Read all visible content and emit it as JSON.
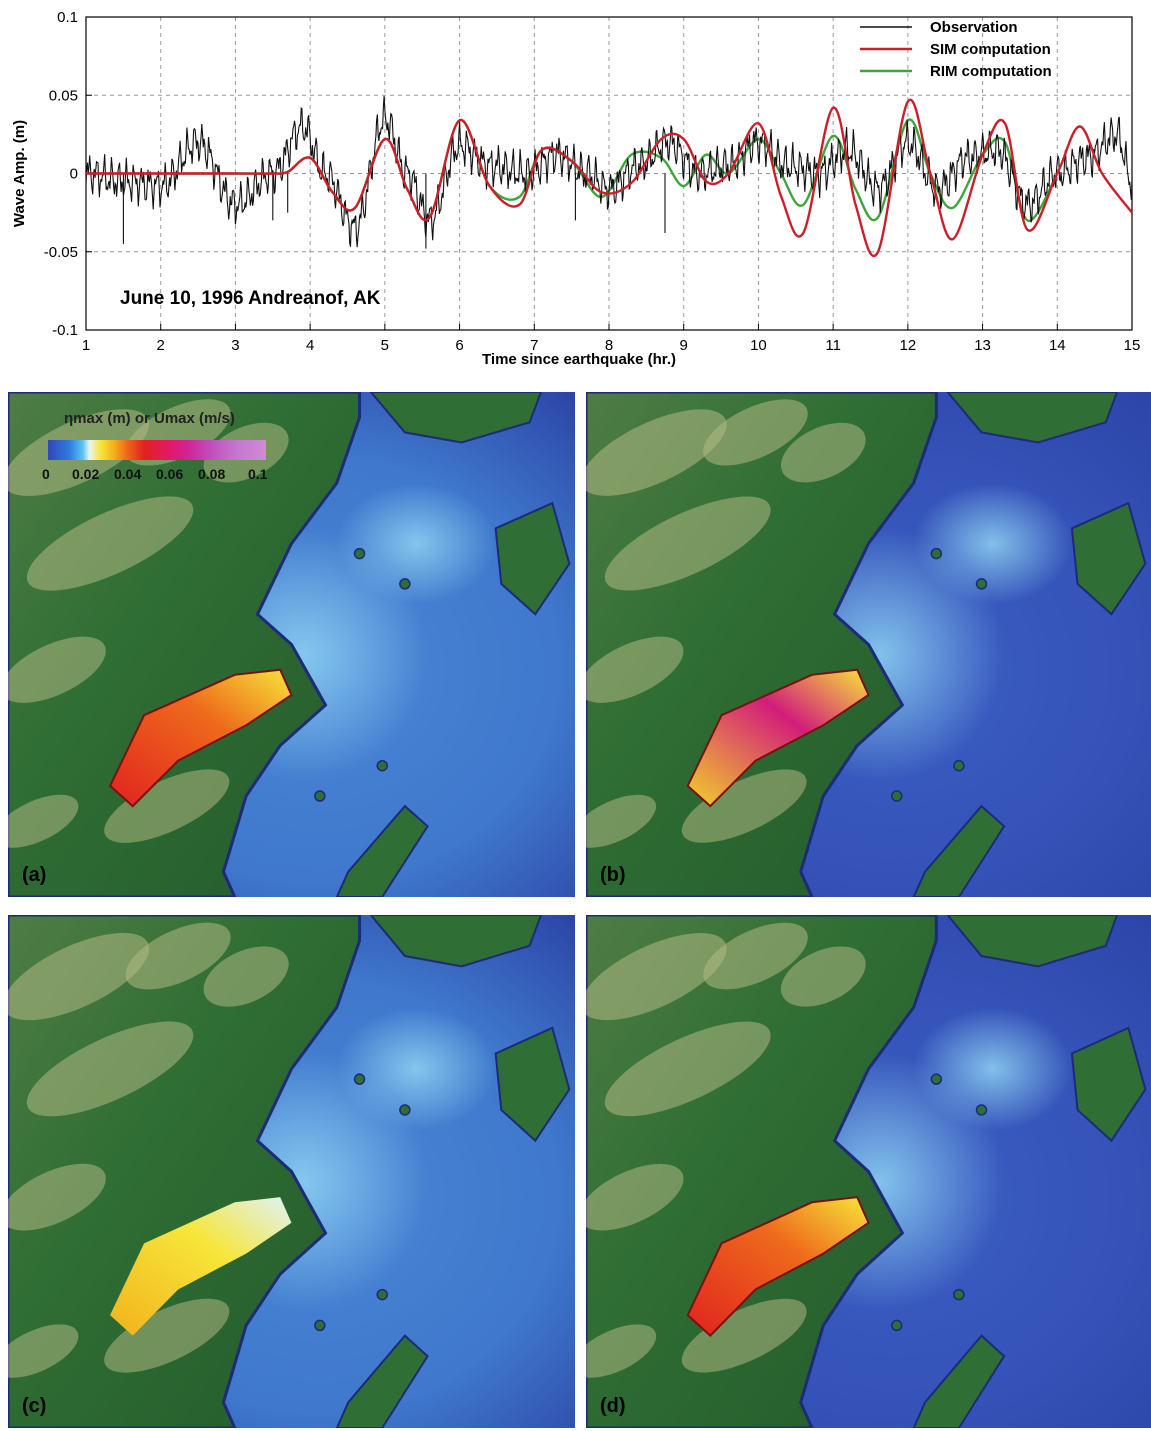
{
  "chart_data": {
    "type": "line",
    "title": "June 10, 1996 Andreanof, AK",
    "xlabel": "Time since earthquake (hr.)",
    "ylabel": "Wave Amp. (m)",
    "xlim": [
      1,
      15
    ],
    "ylim": [
      -0.1,
      0.1
    ],
    "xticks": [
      "1",
      "2",
      "3",
      "4",
      "5",
      "6",
      "7",
      "8",
      "9",
      "10",
      "11",
      "12",
      "13",
      "14",
      "15"
    ],
    "yticks": [
      "-0.1",
      "-0.05",
      "0",
      "0.05",
      "0.1"
    ],
    "grid": true,
    "legend_position": "top-right",
    "series": [
      {
        "name": "Observation",
        "color": "#111111",
        "x": [
          1.0,
          1.5,
          2.0,
          2.5,
          3.0,
          3.5,
          3.9,
          4.2,
          4.6,
          5.0,
          5.3,
          5.6,
          6.0,
          6.4,
          6.9,
          7.3,
          7.7,
          8.0,
          8.4,
          8.8,
          9.2,
          9.6,
          10.0,
          10.4,
          10.8,
          11.2,
          11.6,
          12.0,
          12.4,
          12.8,
          13.2,
          13.6,
          14.0,
          14.4,
          14.8,
          15.0
        ],
        "y": [
          0.0,
          -0.005,
          -0.008,
          0.02,
          -0.02,
          0.0,
          0.03,
          0.0,
          -0.035,
          0.035,
          0.0,
          -0.03,
          0.018,
          0.005,
          0.0,
          0.012,
          0.0,
          -0.01,
          0.005,
          0.02,
          0.0,
          0.005,
          0.02,
          0.005,
          0.0,
          0.015,
          -0.01,
          0.02,
          -0.01,
          0.01,
          0.015,
          -0.02,
          0.0,
          0.01,
          0.025,
          -0.005
        ]
      },
      {
        "name": "SIM computation",
        "color": "#cc1f2a",
        "x": [
          1.0,
          1.5,
          2.0,
          2.5,
          3.0,
          3.5,
          3.7,
          4.0,
          4.3,
          4.6,
          5.0,
          5.3,
          5.6,
          6.0,
          6.4,
          6.8,
          7.1,
          7.5,
          7.9,
          8.3,
          8.7,
          9.0,
          9.3,
          9.6,
          10.0,
          10.3,
          10.6,
          11.0,
          11.3,
          11.6,
          12.0,
          12.3,
          12.6,
          13.0,
          13.3,
          13.6,
          14.0,
          14.3,
          14.6,
          15.0
        ],
        "y": [
          0.0,
          0.0,
          0.0,
          0.0,
          0.0,
          0.0,
          0.001,
          0.01,
          -0.012,
          -0.022,
          0.022,
          -0.01,
          -0.028,
          0.034,
          -0.008,
          -0.02,
          0.015,
          0.008,
          -0.012,
          -0.006,
          0.022,
          0.022,
          -0.005,
          0.0,
          0.032,
          -0.014,
          -0.038,
          0.042,
          -0.02,
          -0.05,
          0.046,
          0.0,
          -0.042,
          0.012,
          0.032,
          -0.036,
          0.0,
          0.03,
          0.0,
          -0.025
        ]
      },
      {
        "name": "RIM computation",
        "color": "#3ca63a",
        "x": [
          1.0,
          1.5,
          2.0,
          2.5,
          3.0,
          3.5,
          3.7,
          4.0,
          4.3,
          4.6,
          5.0,
          5.3,
          5.6,
          6.0,
          6.4,
          6.8,
          7.1,
          7.5,
          7.9,
          8.3,
          8.7,
          9.0,
          9.3,
          9.6,
          10.0,
          10.3,
          10.6,
          11.0,
          11.3,
          11.6,
          12.0,
          12.3,
          12.6,
          13.0,
          13.3,
          13.6,
          14.0
        ],
        "y": [
          0.0,
          0.0,
          0.0,
          0.0,
          0.0,
          0.0,
          0.001,
          0.01,
          -0.012,
          -0.022,
          0.022,
          -0.01,
          -0.028,
          0.034,
          -0.008,
          -0.015,
          0.015,
          0.008,
          -0.015,
          0.012,
          0.01,
          -0.008,
          0.012,
          0.0,
          0.022,
          0.0,
          -0.02,
          0.024,
          -0.01,
          -0.028,
          0.034,
          0.0,
          -0.022,
          0.012,
          0.02,
          -0.03,
          0.0
        ]
      }
    ]
  },
  "colorbar": {
    "title": "ηmax (m) or Umax (m/s)",
    "ticks": [
      "0",
      "0.02",
      "0.04",
      "0.06",
      "0.08",
      "0.1"
    ]
  },
  "panels": [
    {
      "label": "(a)",
      "mode": "red"
    },
    {
      "label": "(b)",
      "mode": "pink"
    },
    {
      "label": "(c)",
      "mode": "yellow"
    },
    {
      "label": "(d)",
      "mode": "red"
    }
  ],
  "colors": {
    "land": "#2f6e34",
    "land_light": "#d8cf9a",
    "ocean": "#3f7fd1",
    "ocean_deep": "#3a58bd",
    "coast": "#1d2a78"
  }
}
